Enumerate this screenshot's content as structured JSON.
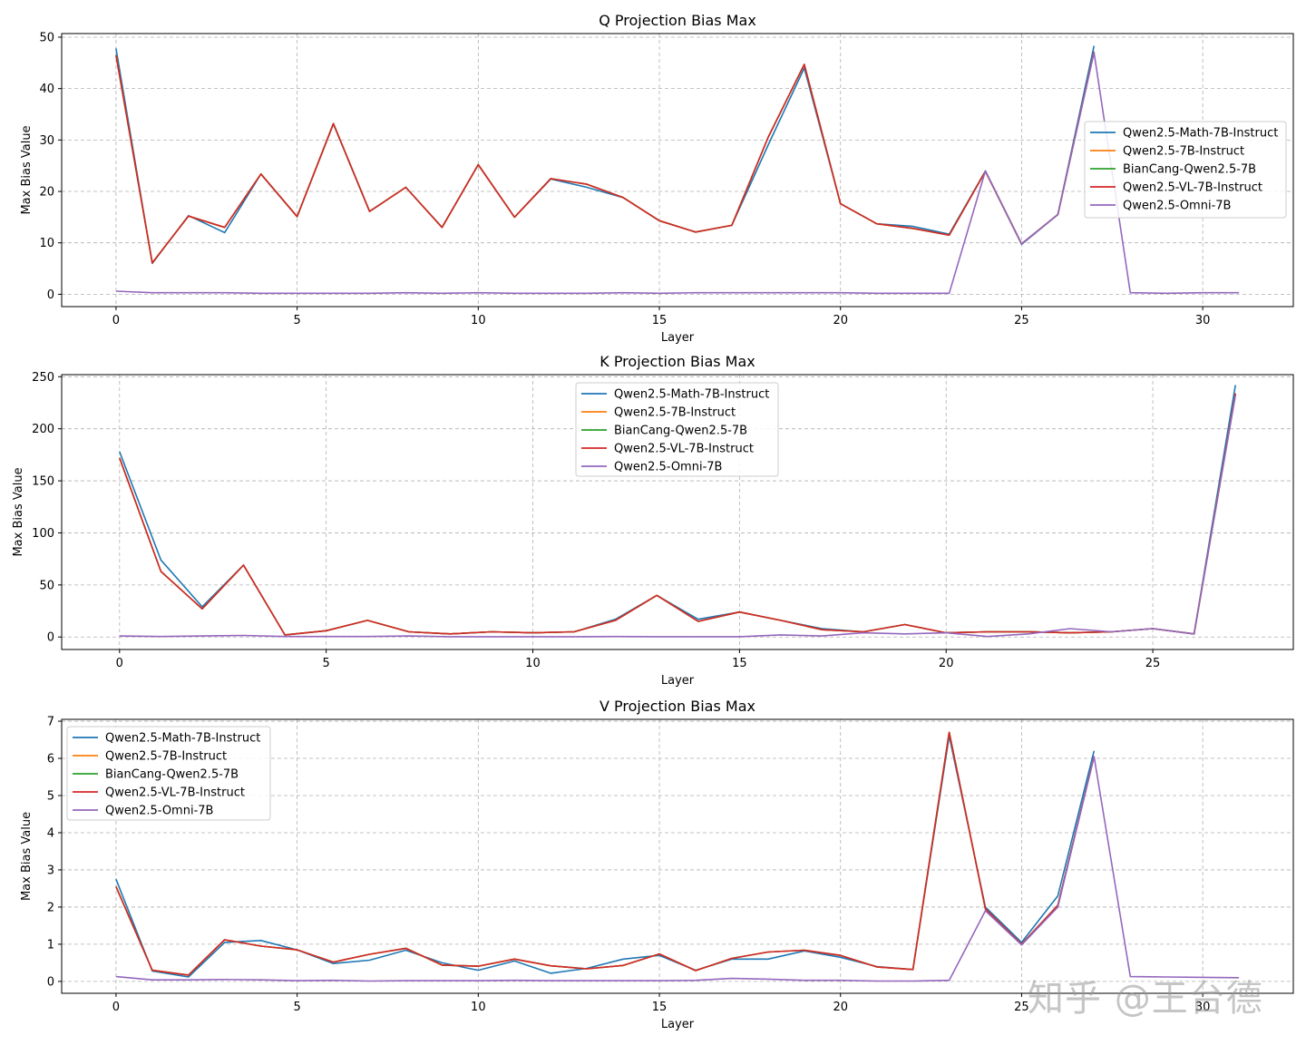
{
  "colors": {
    "Qwen2.5-Math-7B-Instruct": "#1f77b4",
    "Qwen2.5-7B-Instruct": "#ff7f0e",
    "BianCang-Qwen2.5-7B": "#2ca02c",
    "Qwen2.5-VL-7B-Instruct": "#d62728",
    "Qwen2.5-Omni-7B": "#9467bd"
  },
  "watermark": "知乎 @王台德",
  "chart_data": [
    {
      "type": "line",
      "title": "Q Projection Bias Max",
      "xlabel": "Layer",
      "ylabel": "Max Bias Value",
      "xlim": [
        -1.5,
        32.5
      ],
      "ylim": [
        -2.4,
        50.7
      ],
      "xticks": [
        0,
        5,
        10,
        15,
        20,
        25,
        30
      ],
      "yticks": [
        0,
        10,
        20,
        30,
        40,
        50
      ],
      "grid": true,
      "legend": "center-right",
      "series": [
        {
          "name": "Qwen2.5-Math-7B-Instruct",
          "x": [
            0,
            1,
            2,
            3,
            4,
            5,
            6,
            7,
            8,
            9,
            10,
            11,
            12,
            13,
            14,
            15,
            16,
            17,
            18,
            19,
            20,
            21,
            22,
            23,
            24,
            25,
            26,
            27
          ],
          "values": [
            47.8,
            6.0,
            15.3,
            12.0,
            23.4,
            15.1,
            33.1,
            16.1,
            20.8,
            13.0,
            25.2,
            15.0,
            22.4,
            20.8,
            18.8,
            14.3,
            12.1,
            13.4,
            29.0,
            44.0,
            17.6,
            13.7,
            13.2,
            11.7,
            24.0,
            9.7,
            15.5,
            48.3
          ]
        },
        {
          "name": "Qwen2.5-7B-Instruct",
          "x": [
            0,
            1,
            2,
            3,
            4,
            5,
            6,
            7,
            8,
            9,
            10,
            11,
            12,
            13,
            14,
            15,
            16,
            17,
            18,
            19,
            20,
            21,
            22,
            23,
            24,
            25,
            26,
            27
          ],
          "values": [
            46.5,
            6.1,
            15.2,
            13.0,
            23.4,
            15.1,
            33.2,
            16.1,
            20.8,
            13.0,
            25.2,
            15.0,
            22.5,
            21.4,
            18.8,
            14.3,
            12.1,
            13.4,
            30.5,
            44.7,
            17.6,
            13.7,
            12.8,
            11.5,
            23.9,
            9.8,
            15.5,
            47.2
          ]
        },
        {
          "name": "BianCang-Qwen2.5-7B",
          "x": [
            0,
            1,
            2,
            3,
            4,
            5,
            6,
            7,
            8,
            9,
            10,
            11,
            12,
            13,
            14,
            15,
            16,
            17,
            18,
            19,
            20,
            21,
            22,
            23,
            24,
            25,
            26,
            27
          ],
          "values": [
            46.5,
            6.1,
            15.2,
            13.0,
            23.4,
            15.1,
            33.2,
            16.1,
            20.8,
            13.0,
            25.2,
            15.0,
            22.5,
            21.4,
            18.8,
            14.3,
            12.1,
            13.4,
            30.5,
            44.7,
            17.6,
            13.7,
            12.8,
            11.5,
            23.9,
            9.8,
            15.5,
            47.2
          ]
        },
        {
          "name": "Qwen2.5-VL-7B-Instruct",
          "x": [
            0,
            1,
            2,
            3,
            4,
            5,
            6,
            7,
            8,
            9,
            10,
            11,
            12,
            13,
            14,
            15,
            16,
            17,
            18,
            19,
            20,
            21,
            22,
            23,
            24,
            25,
            26,
            27
          ],
          "values": [
            46.5,
            6.1,
            15.2,
            13.0,
            23.4,
            15.1,
            33.2,
            16.1,
            20.8,
            13.0,
            25.2,
            15.0,
            22.5,
            21.4,
            18.8,
            14.3,
            12.1,
            13.4,
            30.5,
            44.7,
            17.6,
            13.7,
            12.8,
            11.5,
            23.9,
            9.8,
            15.5,
            47.2
          ]
        },
        {
          "name": "Qwen2.5-Omni-7B",
          "x": [
            0,
            1,
            2,
            3,
            4,
            5,
            6,
            7,
            8,
            9,
            10,
            11,
            12,
            13,
            14,
            15,
            16,
            17,
            18,
            19,
            20,
            21,
            22,
            23,
            24,
            25,
            26,
            27,
            28,
            29,
            30,
            31
          ],
          "values": [
            0.6,
            0.3,
            0.3,
            0.3,
            0.2,
            0.2,
            0.2,
            0.2,
            0.3,
            0.2,
            0.3,
            0.2,
            0.2,
            0.2,
            0.3,
            0.2,
            0.3,
            0.3,
            0.3,
            0.3,
            0.3,
            0.2,
            0.2,
            0.2,
            24.0,
            9.8,
            15.5,
            47.0,
            0.3,
            0.2,
            0.3,
            0.3
          ]
        }
      ]
    },
    {
      "type": "line",
      "title": "K Projection Bias Max",
      "xlabel": "Layer",
      "ylabel": "Max Bias Value",
      "xlim": [
        -1.4,
        28.4
      ],
      "ylim": [
        -12,
        252
      ],
      "xticks": [
        0,
        5,
        10,
        15,
        20,
        25
      ],
      "yticks": [
        0,
        50,
        100,
        150,
        200,
        250
      ],
      "grid": true,
      "legend": "upper-center",
      "series": [
        {
          "name": "Qwen2.5-Math-7B-Instruct",
          "x": [
            0,
            1,
            2,
            3,
            4,
            5,
            6,
            7,
            8,
            9,
            10,
            11,
            12,
            13,
            14,
            15,
            16,
            17,
            18,
            19,
            20,
            21,
            22,
            23,
            24,
            25,
            26,
            27
          ],
          "values": [
            178,
            74,
            29,
            69,
            2,
            6,
            16,
            5,
            3,
            5,
            4,
            5,
            17,
            40,
            17,
            24,
            16,
            8,
            5,
            12,
            4,
            5,
            5,
            4,
            5,
            8,
            3,
            242
          ]
        },
        {
          "name": "Qwen2.5-7B-Instruct",
          "x": [
            0,
            1,
            2,
            3,
            4,
            5,
            6,
            7,
            8,
            9,
            10,
            11,
            12,
            13,
            14,
            15,
            16,
            17,
            18,
            19,
            20,
            21,
            22,
            23,
            24,
            25,
            26,
            27
          ],
          "values": [
            172,
            63,
            27,
            69,
            2,
            6,
            16,
            5,
            3,
            5,
            4,
            5,
            16,
            40,
            15,
            24,
            16,
            7,
            5,
            12,
            4,
            5,
            5,
            4,
            5,
            8,
            3,
            234
          ]
        },
        {
          "name": "BianCang-Qwen2.5-7B",
          "x": [
            0,
            1,
            2,
            3,
            4,
            5,
            6,
            7,
            8,
            9,
            10,
            11,
            12,
            13,
            14,
            15,
            16,
            17,
            18,
            19,
            20,
            21,
            22,
            23,
            24,
            25,
            26,
            27
          ],
          "values": [
            172,
            63,
            27,
            69,
            2,
            6,
            16,
            5,
            3,
            5,
            4,
            5,
            16,
            40,
            15,
            24,
            16,
            7,
            5,
            12,
            4,
            5,
            5,
            4,
            5,
            8,
            3,
            234
          ]
        },
        {
          "name": "Qwen2.5-VL-7B-Instruct",
          "x": [
            0,
            1,
            2,
            3,
            4,
            5,
            6,
            7,
            8,
            9,
            10,
            11,
            12,
            13,
            14,
            15,
            16,
            17,
            18,
            19,
            20,
            21,
            22,
            23,
            24,
            25,
            26,
            27
          ],
          "values": [
            172,
            63,
            27,
            69,
            2,
            6,
            16,
            5,
            3,
            5,
            4,
            5,
            16,
            40,
            15,
            24,
            16,
            7,
            5,
            12,
            4,
            5,
            5,
            4,
            5,
            8,
            3,
            234
          ]
        },
        {
          "name": "Qwen2.5-Omni-7B",
          "x": [
            0,
            1,
            2,
            3,
            4,
            5,
            6,
            7,
            8,
            9,
            10,
            11,
            12,
            13,
            14,
            15,
            16,
            17,
            18,
            19,
            20,
            21,
            22,
            23,
            24,
            25,
            26,
            27
          ],
          "values": [
            1,
            0.5,
            1,
            1.5,
            0.5,
            0.5,
            0.5,
            1,
            0.3,
            0.3,
            0.3,
            0.3,
            0.5,
            0.3,
            0.3,
            0.3,
            2,
            1,
            4,
            3,
            4,
            0.5,
            3,
            8,
            5,
            8,
            3,
            232
          ]
        }
      ]
    },
    {
      "type": "line",
      "title": "V Projection Bias Max",
      "xlabel": "Layer",
      "ylabel": "Max Bias Value",
      "xlim": [
        -1.5,
        32.5
      ],
      "ylim": [
        -0.32,
        7.05
      ],
      "xticks": [
        0,
        5,
        10,
        15,
        20,
        25,
        30
      ],
      "yticks": [
        0,
        1,
        2,
        3,
        4,
        5,
        6,
        7
      ],
      "grid": true,
      "legend": "upper-left",
      "series": [
        {
          "name": "Qwen2.5-Math-7B-Instruct",
          "x": [
            0,
            1,
            2,
            3,
            4,
            5,
            6,
            7,
            8,
            9,
            10,
            11,
            12,
            13,
            14,
            15,
            16,
            17,
            18,
            19,
            20,
            21,
            22,
            23,
            24,
            25,
            26,
            27
          ],
          "values": [
            2.75,
            0.28,
            0.12,
            1.05,
            1.1,
            0.85,
            0.48,
            0.57,
            0.84,
            0.5,
            0.3,
            0.55,
            0.22,
            0.35,
            0.6,
            0.7,
            0.3,
            0.6,
            0.6,
            0.82,
            0.65,
            0.4,
            0.32,
            6.6,
            2.0,
            1.05,
            2.3,
            6.2
          ]
        },
        {
          "name": "Qwen2.5-7B-Instruct",
          "x": [
            0,
            1,
            2,
            3,
            4,
            5,
            6,
            7,
            8,
            9,
            10,
            11,
            12,
            13,
            14,
            15,
            16,
            17,
            18,
            19,
            20,
            21,
            22,
            23,
            24,
            25,
            26,
            27
          ],
          "values": [
            2.55,
            0.3,
            0.17,
            1.12,
            0.95,
            0.85,
            0.52,
            0.73,
            0.89,
            0.44,
            0.41,
            0.6,
            0.42,
            0.34,
            0.43,
            0.74,
            0.29,
            0.62,
            0.79,
            0.84,
            0.7,
            0.39,
            0.32,
            6.7,
            1.95,
            1.0,
            2.05,
            6.05
          ]
        },
        {
          "name": "BianCang-Qwen2.5-7B",
          "x": [
            0,
            1,
            2,
            3,
            4,
            5,
            6,
            7,
            8,
            9,
            10,
            11,
            12,
            13,
            14,
            15,
            16,
            17,
            18,
            19,
            20,
            21,
            22,
            23,
            24,
            25,
            26,
            27
          ],
          "values": [
            2.55,
            0.3,
            0.17,
            1.12,
            0.95,
            0.85,
            0.52,
            0.73,
            0.89,
            0.44,
            0.41,
            0.6,
            0.42,
            0.34,
            0.43,
            0.74,
            0.29,
            0.62,
            0.79,
            0.84,
            0.7,
            0.39,
            0.32,
            6.7,
            1.95,
            1.0,
            2.05,
            6.05
          ]
        },
        {
          "name": "Qwen2.5-VL-7B-Instruct",
          "x": [
            0,
            1,
            2,
            3,
            4,
            5,
            6,
            7,
            8,
            9,
            10,
            11,
            12,
            13,
            14,
            15,
            16,
            17,
            18,
            19,
            20,
            21,
            22,
            23,
            24,
            25,
            26,
            27
          ],
          "values": [
            2.55,
            0.3,
            0.17,
            1.12,
            0.95,
            0.85,
            0.52,
            0.73,
            0.89,
            0.44,
            0.41,
            0.6,
            0.42,
            0.34,
            0.43,
            0.74,
            0.29,
            0.62,
            0.79,
            0.84,
            0.7,
            0.39,
            0.32,
            6.7,
            1.95,
            1.0,
            2.05,
            6.05
          ]
        },
        {
          "name": "Qwen2.5-Omni-7B",
          "x": [
            0,
            1,
            2,
            3,
            4,
            5,
            6,
            7,
            8,
            9,
            10,
            11,
            12,
            13,
            14,
            15,
            16,
            17,
            18,
            19,
            20,
            21,
            22,
            23,
            24,
            25,
            26,
            27,
            28,
            29,
            30,
            31
          ],
          "values": [
            0.13,
            0.04,
            0.04,
            0.05,
            0.04,
            0.02,
            0.03,
            0.01,
            0.02,
            0.02,
            0.02,
            0.03,
            0.02,
            0.02,
            0.02,
            0.02,
            0.03,
            0.08,
            0.06,
            0.03,
            0.03,
            0.01,
            0.01,
            0.03,
            1.9,
            0.98,
            2.0,
            6.05,
            0.13,
            0.12,
            0.11,
            0.1
          ]
        }
      ]
    }
  ]
}
